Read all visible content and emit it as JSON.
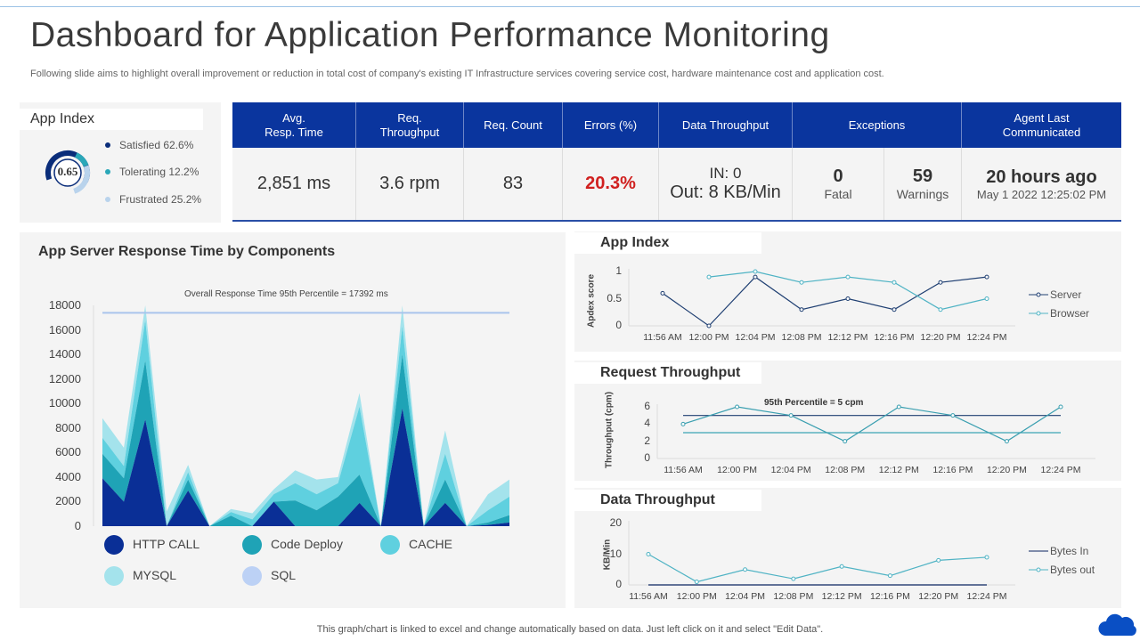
{
  "header": {
    "title": "Dashboard for Application Performance Monitoring",
    "subtitle": "Following slide aims to highlight overall improvement or reduction in  total cost of company's existing IT Infrastructure services covering service cost, hardware maintenance cost and application cost."
  },
  "app_index": {
    "title": "App Index",
    "score": "0.65",
    "items": [
      {
        "label": "Satisfied 62.6%",
        "value": 62.6,
        "color": "#0a2d7a"
      },
      {
        "label": "Tolerating 12.2%",
        "value": 12.2,
        "color": "#2aa7b8"
      },
      {
        "label": "Frustrated 25.2%",
        "value": 25.2,
        "color": "#b9d3ec"
      }
    ]
  },
  "kpis": {
    "headers": [
      "Avg.\nResp. Time",
      "Req.\nThroughput",
      "Req. Count",
      "Errors (%)",
      "Data Throughput",
      "Exceptions",
      "Agent Last\nCommunicated"
    ],
    "avg_resp": "2,851 ms",
    "req_throughput": "3.6 rpm",
    "req_count": "83",
    "errors": "20.3%",
    "errors_color": "#d0201f",
    "data_in": "IN: 0",
    "data_out": "Out: 8 KB/Min",
    "fatal_value": "0",
    "fatal_label": "Fatal",
    "warnings_value": "59",
    "warnings_label": "Warnings",
    "agent_ago": "20 hours ago",
    "agent_time": "May 1 2022 12:25:02 PM"
  },
  "chart_data": [
    {
      "type": "area",
      "stacked": true,
      "title": "App  Server Response Time by Components",
      "annotation": "Overall Response Time  95th Percentile =  17392 ms",
      "reference_line": 17392,
      "ylim": [
        0,
        18000
      ],
      "yticks": [
        0,
        2000,
        4000,
        6000,
        8000,
        10000,
        12000,
        14000,
        16000,
        18000
      ],
      "legend": "bottom",
      "series": [
        {
          "name": "HTTP CALL",
          "color": "#0a2f96",
          "values": [
            3900,
            2000,
            8700,
            0,
            2900,
            0,
            0,
            0,
            2000,
            0,
            0,
            0,
            1900,
            0,
            9600,
            0,
            1900,
            0,
            100,
            300
          ]
        },
        {
          "name": "Code Deploy",
          "color": "#1fa3b6",
          "values": [
            2000,
            1900,
            4800,
            0,
            900,
            0,
            850,
            0,
            0,
            2100,
            1300,
            2400,
            2300,
            0,
            4400,
            0,
            1900,
            0,
            200,
            600
          ]
        },
        {
          "name": "CACHE",
          "color": "#5fd0df",
          "values": [
            1300,
            1000,
            3300,
            0,
            600,
            0,
            300,
            550,
            600,
            1400,
            1300,
            1100,
            5550,
            0,
            2300,
            0,
            2100,
            0,
            1000,
            1500
          ]
        },
        {
          "name": "MYSQL",
          "color": "#a4e3ec",
          "values": [
            1600,
            1500,
            1200,
            1200,
            600,
            0,
            250,
            500,
            400,
            1050,
            1200,
            500,
            1100,
            0,
            1700,
            0,
            1900,
            0,
            1300,
            1400
          ]
        },
        {
          "name": "SQL",
          "color": "#bcd1f5",
          "values": [
            0,
            0,
            0,
            0,
            0,
            0,
            0,
            0,
            0,
            0,
            0,
            0,
            0,
            0,
            0,
            0,
            0,
            0,
            0,
            0
          ]
        }
      ]
    },
    {
      "type": "line",
      "title": "App Index",
      "ylabel": "Apdex score",
      "ylim": [
        0,
        1
      ],
      "yticks": [
        "0",
        "0.5",
        "1"
      ],
      "legend": "right",
      "categories": [
        "11:56 AM",
        "12:00 PM",
        "12:04 PM",
        "12:08 PM",
        "12:12 PM",
        "12:16 PM",
        "12:20 PM",
        "12:24 PM"
      ],
      "series": [
        {
          "name": "Server",
          "color": "#1f3f72",
          "values": [
            0.6,
            0,
            0.9,
            0.3,
            0.5,
            0.3,
            0.8,
            0.9
          ]
        },
        {
          "name": "Browser",
          "color": "#4fb3c4",
          "values": [
            null,
            0.9,
            1,
            0.8,
            0.9,
            0.8,
            0.3,
            0.5
          ]
        }
      ]
    },
    {
      "type": "line",
      "title": "Request Throughput",
      "ylabel": "Throughput (cpm)",
      "ylim": [
        0,
        6
      ],
      "yticks": [
        "0",
        "2",
        "4",
        "6"
      ],
      "annotation": "95th Percentile = 5 cpm",
      "reference_lines": [
        {
          "value": 5,
          "color": "#1f3f72"
        },
        {
          "value": 3,
          "color": "#3aa3b4"
        }
      ],
      "categories": [
        "11:56 AM",
        "12:00 PM",
        "12:04 PM",
        "12:08 PM",
        "12:12 PM",
        "12:16 PM",
        "12:20 PM",
        "12:24 PM"
      ],
      "series": [
        {
          "color": "#3a9fb0",
          "values": [
            4,
            6,
            5,
            2,
            6,
            5,
            2,
            6
          ]
        }
      ]
    },
    {
      "type": "line",
      "title": "Data Throughput",
      "ylabel": "KB/Min",
      "ylim": [
        0,
        20
      ],
      "yticks": [
        "0",
        "10",
        "20"
      ],
      "legend": "right",
      "categories": [
        "11:56 AM",
        "12:00 PM",
        "12:04 PM",
        "12:08 PM",
        "12:12 PM",
        "12:16 PM",
        "12:20 PM",
        "12:24 PM"
      ],
      "series": [
        {
          "name": "Bytes In",
          "color": "#0a2560",
          "values": [
            0,
            0,
            0,
            0,
            0,
            0,
            0,
            0
          ]
        },
        {
          "name": "Bytes out",
          "color": "#4fb3c4",
          "values": [
            10,
            1,
            5,
            2,
            6,
            3,
            8,
            9
          ]
        }
      ]
    }
  ],
  "footer": {
    "note": "This graph/chart is linked to excel and change automatically based on data. Just left click on it and select \"Edit Data\"."
  },
  "icons": {
    "cloud": "cloud-icon",
    "cloud_color": "#0a4fc4"
  }
}
